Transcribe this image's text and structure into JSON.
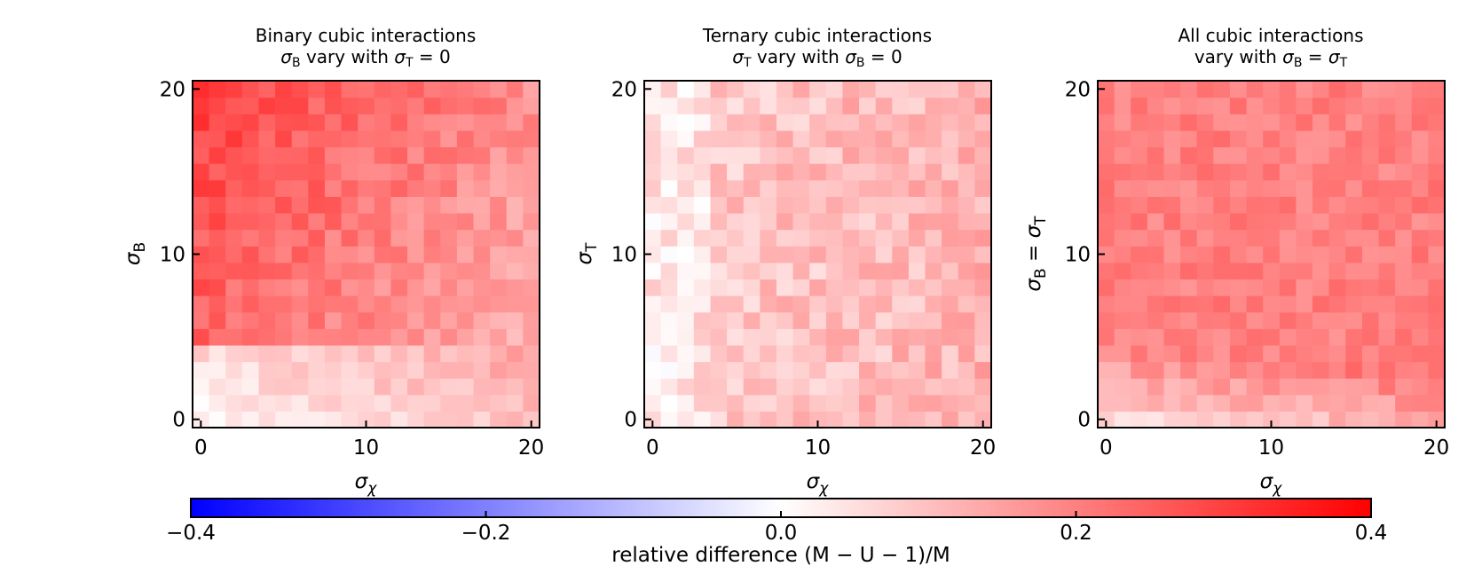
{
  "chart_data": [
    {
      "type": "heatmap",
      "panel": "binary",
      "title_line1": "Binary cubic interactions",
      "title_line2": "σB vary with σT = 0",
      "xlabel": "σχ",
      "ylabel": "σB",
      "xticks": [
        0,
        10,
        20
      ],
      "yticks": [
        0,
        10,
        20
      ],
      "xlim": [
        -0.5,
        20.5
      ],
      "ylim": [
        -0.5,
        20.5
      ],
      "grid_size": 21,
      "values_description": "relative difference per (σχ, row) cell, row 0 = bottom",
      "model": {
        "kind": "binary",
        "base": 0.07,
        "low_rows_cut": 5,
        "gradient": 0.012,
        "noise": 0.04
      }
    },
    {
      "type": "heatmap",
      "panel": "ternary",
      "title_line1": "Ternary cubic interactions",
      "title_line2": "σT vary with σB = 0",
      "xlabel": "σχ",
      "ylabel": "σT",
      "xticks": [
        0,
        10,
        20
      ],
      "yticks": [
        0,
        10,
        20
      ],
      "xlim": [
        -0.5,
        20.5
      ],
      "ylim": [
        -0.5,
        20.5
      ],
      "grid_size": 21,
      "model": {
        "kind": "ternary",
        "base": 0.08,
        "noise": 0.05
      }
    },
    {
      "type": "heatmap",
      "panel": "all",
      "title_line1": "All cubic interactions",
      "title_line2": "vary with σB = σT",
      "xlabel": "σχ",
      "ylabel": "σB = σT",
      "xticks": [
        0,
        10,
        20
      ],
      "yticks": [
        0,
        10,
        20
      ],
      "xlim": [
        -0.5,
        20.5
      ],
      "ylim": [
        -0.5,
        20.5
      ],
      "grid_size": 21,
      "model": {
        "kind": "all",
        "base": 0.2,
        "noise": 0.035
      }
    }
  ],
  "colorbar": {
    "label": "relative difference (M − U − 1)/M",
    "min": -0.4,
    "max": 0.4,
    "ticks": [
      -0.4,
      -0.2,
      0.0,
      0.2,
      0.4
    ],
    "tick_labels": [
      "−0.4",
      "−0.2",
      "0.0",
      "0.2",
      "0.4"
    ],
    "colormap": "bwr",
    "colors": {
      "low": "#0000ff",
      "mid": "#ffffff",
      "high": "#ff0000"
    }
  }
}
